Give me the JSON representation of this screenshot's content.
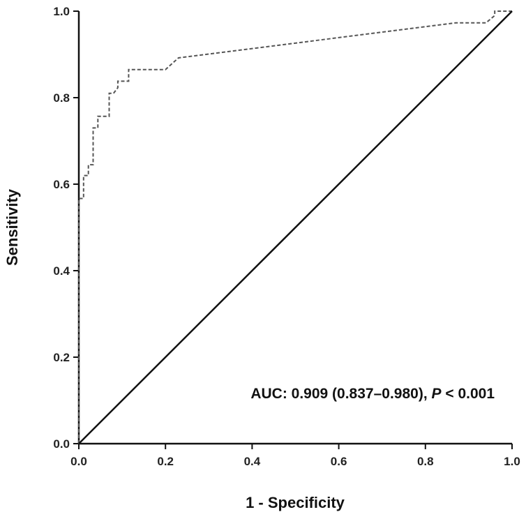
{
  "chart_data": {
    "type": "line",
    "title": "",
    "xlabel": "1 - Specificity",
    "ylabel": "Sensitivity",
    "xlim": [
      0,
      1
    ],
    "ylim": [
      0,
      1
    ],
    "x_ticks": [
      "0.0",
      "0.2",
      "0.4",
      "0.6",
      "0.8",
      "1.0"
    ],
    "y_ticks": [
      "0.0",
      "0.2",
      "0.4",
      "0.6",
      "0.8",
      "1.0"
    ],
    "grid": false,
    "legend": "none",
    "series": [
      {
        "style": "dashed",
        "color": "#555555",
        "x": [
          0.0,
          0.0,
          0.011,
          0.011,
          0.022,
          0.022,
          0.033,
          0.033,
          0.044,
          0.044,
          0.055,
          0.055,
          0.07,
          0.07,
          0.08,
          0.09,
          0.09,
          0.1,
          0.115,
          0.115,
          0.2,
          0.23,
          0.87,
          0.94,
          0.96,
          0.96,
          1.0
        ],
        "y": [
          0.0,
          0.567,
          0.567,
          0.62,
          0.62,
          0.645,
          0.645,
          0.73,
          0.73,
          0.757,
          0.757,
          0.757,
          0.757,
          0.81,
          0.81,
          0.823,
          0.838,
          0.838,
          0.838,
          0.865,
          0.865,
          0.892,
          0.973,
          0.973,
          0.99,
          1.0,
          1.0
        ]
      },
      {
        "style": "solid",
        "color": "#111111",
        "x": [
          0,
          1
        ],
        "y": [
          0,
          1
        ]
      }
    ],
    "annotations": [
      {
        "prefix": "AUC: 0.909 (0.837–0.980), ",
        "italic": "P",
        "suffix": " < 0.001"
      }
    ]
  }
}
